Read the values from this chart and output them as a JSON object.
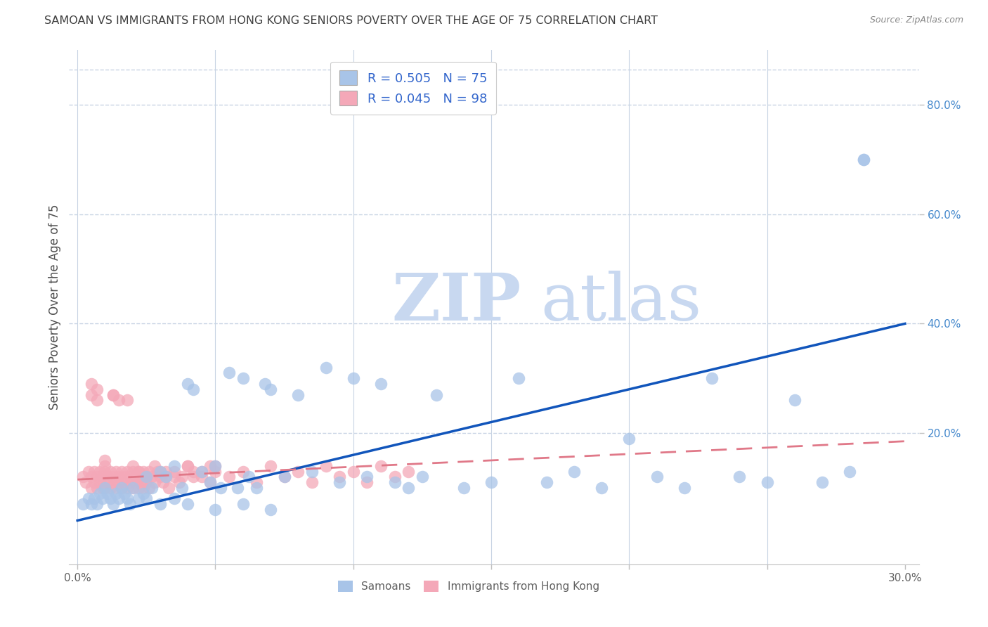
{
  "title": "SAMOAN VS IMMIGRANTS FROM HONG KONG SENIORS POVERTY OVER THE AGE OF 75 CORRELATION CHART",
  "source": "Source: ZipAtlas.com",
  "ylabel": "Seniors Poverty Over the Age of 75",
  "xlim": [
    -0.003,
    0.305
  ],
  "ylim": [
    -0.04,
    0.9
  ],
  "xticks": [
    0.0,
    0.05,
    0.1,
    0.15,
    0.2,
    0.25,
    0.3
  ],
  "xticklabels": [
    "0.0%",
    "",
    "",
    "",
    "",
    "",
    "30.0%"
  ],
  "right_yticks": [
    0.2,
    0.4,
    0.6,
    0.8
  ],
  "right_yticklabels": [
    "20.0%",
    "40.0%",
    "60.0%",
    "80.0%"
  ],
  "watermark_zip": "ZIP",
  "watermark_atlas": "atlas",
  "watermark_color": "#ccd9ef",
  "legend_label1": "R = 0.505   N = 75",
  "legend_label2": "R = 0.045   N = 98",
  "samoan_color": "#a8c4e8",
  "hk_color": "#f4a8b8",
  "samoan_line_color": "#1155bb",
  "hk_line_color": "#e07888",
  "title_color": "#404040",
  "axis_label_color": "#505050",
  "grid_color": "#c8d4e4",
  "right_tick_color": "#4488cc",
  "bottom_legend_color": "#606060",
  "sam_line_x0": 0.0,
  "sam_line_y0": 0.04,
  "sam_line_x1": 0.3,
  "sam_line_y1": 0.4,
  "hk_line_x0": 0.0,
  "hk_line_y0": 0.115,
  "hk_line_x1": 0.3,
  "hk_line_y1": 0.185,
  "samoans_x": [
    0.002,
    0.004,
    0.005,
    0.006,
    0.007,
    0.008,
    0.009,
    0.01,
    0.011,
    0.012,
    0.013,
    0.014,
    0.015,
    0.016,
    0.017,
    0.018,
    0.019,
    0.02,
    0.022,
    0.024,
    0.025,
    0.027,
    0.03,
    0.032,
    0.035,
    0.038,
    0.04,
    0.042,
    0.045,
    0.048,
    0.05,
    0.052,
    0.055,
    0.058,
    0.06,
    0.062,
    0.065,
    0.068,
    0.07,
    0.075,
    0.08,
    0.085,
    0.09,
    0.095,
    0.1,
    0.105,
    0.11,
    0.115,
    0.12,
    0.125,
    0.13,
    0.14,
    0.15,
    0.16,
    0.17,
    0.18,
    0.19,
    0.2,
    0.21,
    0.22,
    0.23,
    0.24,
    0.25,
    0.26,
    0.27,
    0.28,
    0.285,
    0.025,
    0.03,
    0.035,
    0.04,
    0.05,
    0.06,
    0.07,
    0.285
  ],
  "samoans_y": [
    0.07,
    0.08,
    0.07,
    0.08,
    0.07,
    0.09,
    0.08,
    0.1,
    0.09,
    0.08,
    0.07,
    0.09,
    0.08,
    0.1,
    0.09,
    0.08,
    0.07,
    0.1,
    0.08,
    0.09,
    0.12,
    0.1,
    0.13,
    0.12,
    0.14,
    0.1,
    0.29,
    0.28,
    0.13,
    0.11,
    0.14,
    0.1,
    0.31,
    0.1,
    0.3,
    0.12,
    0.1,
    0.29,
    0.28,
    0.12,
    0.27,
    0.13,
    0.32,
    0.11,
    0.3,
    0.12,
    0.29,
    0.11,
    0.1,
    0.12,
    0.27,
    0.1,
    0.11,
    0.3,
    0.11,
    0.13,
    0.1,
    0.19,
    0.12,
    0.1,
    0.3,
    0.12,
    0.11,
    0.26,
    0.11,
    0.13,
    0.7,
    0.08,
    0.07,
    0.08,
    0.07,
    0.06,
    0.07,
    0.06,
    0.7
  ],
  "hk_x": [
    0.002,
    0.003,
    0.004,
    0.005,
    0.005,
    0.006,
    0.006,
    0.007,
    0.007,
    0.008,
    0.008,
    0.009,
    0.009,
    0.01,
    0.01,
    0.011,
    0.011,
    0.012,
    0.012,
    0.013,
    0.013,
    0.014,
    0.014,
    0.015,
    0.015,
    0.016,
    0.016,
    0.017,
    0.017,
    0.018,
    0.018,
    0.019,
    0.019,
    0.02,
    0.02,
    0.021,
    0.021,
    0.022,
    0.022,
    0.023,
    0.023,
    0.024,
    0.024,
    0.025,
    0.025,
    0.026,
    0.026,
    0.027,
    0.028,
    0.029,
    0.03,
    0.031,
    0.032,
    0.033,
    0.035,
    0.037,
    0.04,
    0.042,
    0.045,
    0.048,
    0.05,
    0.055,
    0.06,
    0.065,
    0.07,
    0.075,
    0.08,
    0.085,
    0.09,
    0.095,
    0.1,
    0.105,
    0.11,
    0.115,
    0.12,
    0.005,
    0.007,
    0.01,
    0.013,
    0.015,
    0.018,
    0.02,
    0.022,
    0.025,
    0.028,
    0.03,
    0.032,
    0.035,
    0.038,
    0.04,
    0.042,
    0.045,
    0.048,
    0.05,
    0.005,
    0.007,
    0.01,
    0.013
  ],
  "hk_y": [
    0.12,
    0.11,
    0.13,
    0.1,
    0.12,
    0.11,
    0.13,
    0.1,
    0.12,
    0.11,
    0.13,
    0.1,
    0.12,
    0.13,
    0.1,
    0.12,
    0.11,
    0.13,
    0.1,
    0.12,
    0.11,
    0.13,
    0.1,
    0.12,
    0.11,
    0.13,
    0.1,
    0.12,
    0.11,
    0.13,
    0.1,
    0.12,
    0.11,
    0.13,
    0.1,
    0.12,
    0.11,
    0.13,
    0.1,
    0.12,
    0.11,
    0.13,
    0.1,
    0.12,
    0.11,
    0.13,
    0.1,
    0.12,
    0.11,
    0.13,
    0.12,
    0.11,
    0.13,
    0.1,
    0.12,
    0.11,
    0.14,
    0.12,
    0.13,
    0.11,
    0.14,
    0.12,
    0.13,
    0.11,
    0.14,
    0.12,
    0.13,
    0.11,
    0.14,
    0.12,
    0.13,
    0.11,
    0.14,
    0.12,
    0.13,
    0.27,
    0.26,
    0.14,
    0.27,
    0.26,
    0.26,
    0.14,
    0.13,
    0.12,
    0.14,
    0.13,
    0.12,
    0.13,
    0.12,
    0.14,
    0.13,
    0.12,
    0.14,
    0.13,
    0.29,
    0.28,
    0.15,
    0.27
  ]
}
